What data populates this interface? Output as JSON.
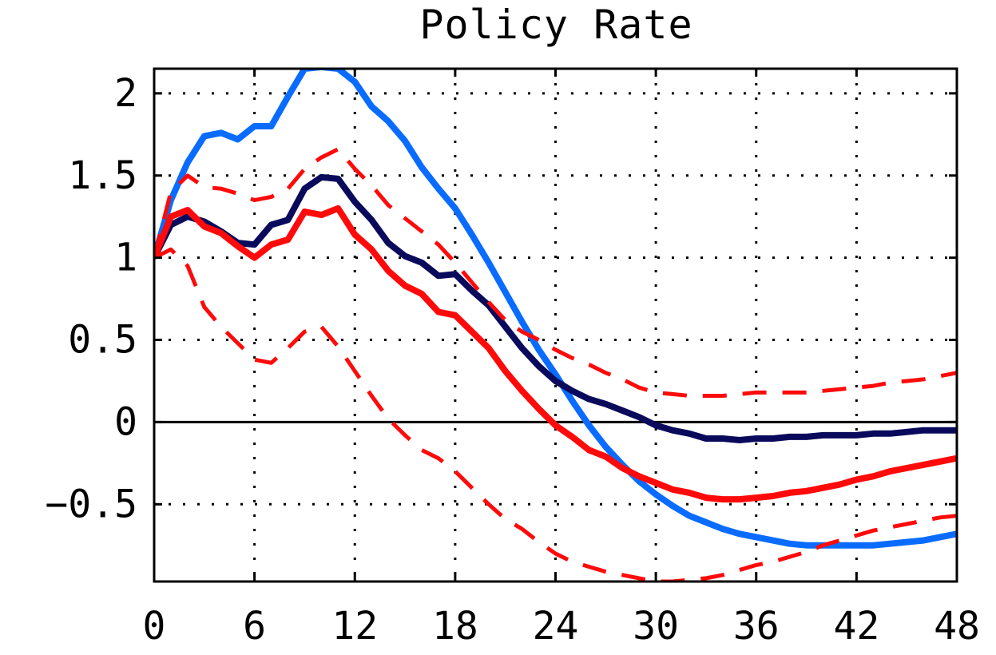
{
  "chart_data": {
    "type": "line",
    "title": "Policy Rate",
    "xlabel": "",
    "ylabel": "",
    "xlim": [
      0,
      48
    ],
    "ylim": [
      -0.97,
      2.15
    ],
    "xticks": [
      0,
      6,
      12,
      18,
      24,
      30,
      36,
      42,
      48
    ],
    "xtick_labels": [
      "0",
      "6",
      "12",
      "18",
      "24",
      "30",
      "36",
      "42",
      "48"
    ],
    "yticks": [
      2,
      1.5,
      1,
      0.5,
      0,
      -0.5
    ],
    "ytick_labels": [
      "2",
      "1.5",
      "1",
      "0.5",
      "0",
      "−0.5"
    ],
    "grid": true,
    "zero_line": true,
    "series": [
      {
        "color": "#0a6cff",
        "style": "solid",
        "x": [
          0,
          1,
          2,
          3,
          4,
          5,
          6,
          7,
          8,
          9,
          10,
          11,
          12,
          13,
          14,
          15,
          16,
          17,
          18,
          19,
          20,
          21,
          22,
          23,
          24,
          25,
          26,
          27,
          28,
          29,
          30,
          31,
          32,
          33,
          34,
          35,
          36,
          37,
          38,
          39,
          40,
          41,
          42,
          43,
          44,
          45,
          46,
          47,
          48
        ],
        "y": [
          1.0,
          1.35,
          1.58,
          1.74,
          1.76,
          1.72,
          1.8,
          1.8,
          1.98,
          2.15,
          2.16,
          2.15,
          2.07,
          1.92,
          1.83,
          1.71,
          1.55,
          1.42,
          1.3,
          1.14,
          0.97,
          0.79,
          0.61,
          0.44,
          0.29,
          0.13,
          -0.02,
          -0.15,
          -0.26,
          -0.36,
          -0.44,
          -0.51,
          -0.57,
          -0.61,
          -0.65,
          -0.68,
          -0.7,
          -0.72,
          -0.74,
          -0.75,
          -0.75,
          -0.75,
          -0.75,
          -0.75,
          -0.74,
          -0.73,
          -0.72,
          -0.7,
          -0.68
        ]
      },
      {
        "color": "#0a0a5c",
        "style": "solid",
        "x": [
          0,
          1,
          2,
          3,
          4,
          5,
          6,
          7,
          8,
          9,
          10,
          11,
          12,
          13,
          14,
          15,
          16,
          17,
          18,
          19,
          20,
          21,
          22,
          23,
          24,
          25,
          26,
          27,
          28,
          29,
          30,
          31,
          32,
          33,
          34,
          35,
          36,
          37,
          38,
          39,
          40,
          41,
          42,
          43,
          44,
          45,
          46,
          47,
          48
        ],
        "y": [
          1.0,
          1.2,
          1.25,
          1.22,
          1.16,
          1.09,
          1.08,
          1.2,
          1.23,
          1.42,
          1.49,
          1.48,
          1.34,
          1.23,
          1.09,
          1.01,
          0.97,
          0.89,
          0.9,
          0.8,
          0.71,
          0.58,
          0.45,
          0.34,
          0.25,
          0.19,
          0.14,
          0.11,
          0.07,
          0.03,
          -0.02,
          -0.05,
          -0.07,
          -0.1,
          -0.1,
          -0.11,
          -0.1,
          -0.1,
          -0.09,
          -0.09,
          -0.08,
          -0.08,
          -0.08,
          -0.07,
          -0.07,
          -0.06,
          -0.05,
          -0.05,
          -0.05
        ]
      },
      {
        "color": "#ff0a0a",
        "style": "solid",
        "x": [
          0,
          1,
          2,
          3,
          4,
          5,
          6,
          7,
          8,
          9,
          10,
          11,
          12,
          13,
          14,
          15,
          16,
          17,
          18,
          19,
          20,
          21,
          22,
          23,
          24,
          25,
          26,
          27,
          28,
          29,
          30,
          31,
          32,
          33,
          34,
          35,
          36,
          37,
          38,
          39,
          40,
          41,
          42,
          43,
          44,
          45,
          46,
          47,
          48
        ],
        "y": [
          1.0,
          1.25,
          1.29,
          1.19,
          1.15,
          1.07,
          1.0,
          1.08,
          1.11,
          1.28,
          1.26,
          1.3,
          1.14,
          1.05,
          0.92,
          0.83,
          0.78,
          0.67,
          0.65,
          0.55,
          0.45,
          0.31,
          0.19,
          0.08,
          -0.02,
          -0.09,
          -0.17,
          -0.21,
          -0.28,
          -0.33,
          -0.37,
          -0.41,
          -0.43,
          -0.46,
          -0.47,
          -0.47,
          -0.46,
          -0.45,
          -0.43,
          -0.42,
          -0.4,
          -0.38,
          -0.35,
          -0.33,
          -0.3,
          -0.28,
          -0.26,
          -0.24,
          -0.22
        ]
      },
      {
        "color": "#ff0a0a",
        "style": "dashed",
        "x": [
          0,
          1,
          2,
          3,
          4,
          5,
          6,
          7,
          8,
          9,
          10,
          11,
          12,
          13,
          14,
          15,
          16,
          17,
          18,
          19,
          20,
          21,
          22,
          23,
          24,
          25,
          26,
          27,
          28,
          29,
          30,
          31,
          32,
          33,
          34,
          35,
          36,
          37,
          38,
          39,
          40,
          41,
          42,
          43,
          44,
          45,
          46,
          47,
          48
        ],
        "y": [
          1.0,
          1.4,
          1.5,
          1.43,
          1.42,
          1.39,
          1.35,
          1.37,
          1.42,
          1.54,
          1.61,
          1.66,
          1.54,
          1.44,
          1.32,
          1.24,
          1.16,
          1.08,
          0.97,
          0.85,
          0.73,
          0.62,
          0.55,
          0.5,
          0.44,
          0.39,
          0.35,
          0.3,
          0.26,
          0.21,
          0.18,
          0.17,
          0.16,
          0.16,
          0.16,
          0.17,
          0.18,
          0.18,
          0.18,
          0.18,
          0.19,
          0.2,
          0.21,
          0.22,
          0.24,
          0.25,
          0.26,
          0.28,
          0.3
        ]
      },
      {
        "color": "#ff0a0a",
        "style": "dashed",
        "x": [
          0,
          1,
          2,
          3,
          4,
          5,
          6,
          7,
          8,
          9,
          10,
          11,
          12,
          13,
          14,
          15,
          16,
          17,
          18,
          19,
          20,
          21,
          22,
          23,
          24,
          25,
          26,
          27,
          28,
          29,
          30,
          31,
          32,
          33,
          34,
          35,
          36,
          37,
          38,
          39,
          40,
          41,
          42,
          43,
          44,
          45,
          46,
          47,
          48
        ],
        "y": [
          1.0,
          1.05,
          0.95,
          0.7,
          0.58,
          0.48,
          0.38,
          0.36,
          0.45,
          0.55,
          0.58,
          0.46,
          0.31,
          0.16,
          0.02,
          -0.08,
          -0.17,
          -0.22,
          -0.3,
          -0.4,
          -0.5,
          -0.59,
          -0.65,
          -0.73,
          -0.8,
          -0.85,
          -0.88,
          -0.91,
          -0.93,
          -0.95,
          -0.97,
          -0.97,
          -0.96,
          -0.95,
          -0.93,
          -0.9,
          -0.87,
          -0.85,
          -0.82,
          -0.79,
          -0.75,
          -0.72,
          -0.69,
          -0.66,
          -0.64,
          -0.62,
          -0.6,
          -0.58,
          -0.57
        ]
      }
    ]
  }
}
